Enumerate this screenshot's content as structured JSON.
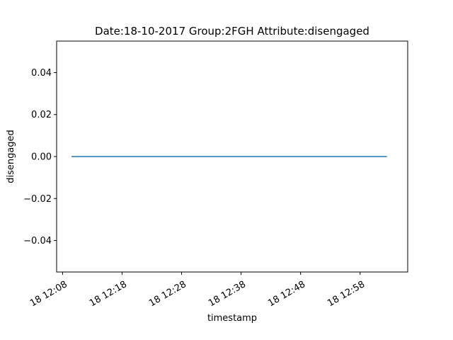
{
  "chart_data": {
    "type": "line",
    "title": "Date:18-10-2017  Group:2FGH Attribute:disengaged",
    "xlabel": "timestamp",
    "ylabel": "disengaged",
    "x_ticks": [
      "18 12:08",
      "18 12:18",
      "18 12:28",
      "18 12:38",
      "18 12:48",
      "18 12:58"
    ],
    "y_ticks": [
      "0.04",
      "0.02",
      "0.00",
      "−0.02",
      "−0.04"
    ],
    "y_tick_values": [
      0.04,
      0.02,
      0.0,
      -0.02,
      -0.04
    ],
    "ylim": [
      -0.055,
      0.055
    ],
    "xlim": [
      "2017-10-18 12:07",
      "2017-10-18 13:06"
    ],
    "grid": false,
    "series": [
      {
        "color": "#1f77b4",
        "points": [
          {
            "x": "2017-10-18 12:09:30",
            "y": 0.0
          },
          {
            "x": "2017-10-18 13:02:30",
            "y": 0.0
          }
        ]
      }
    ]
  }
}
